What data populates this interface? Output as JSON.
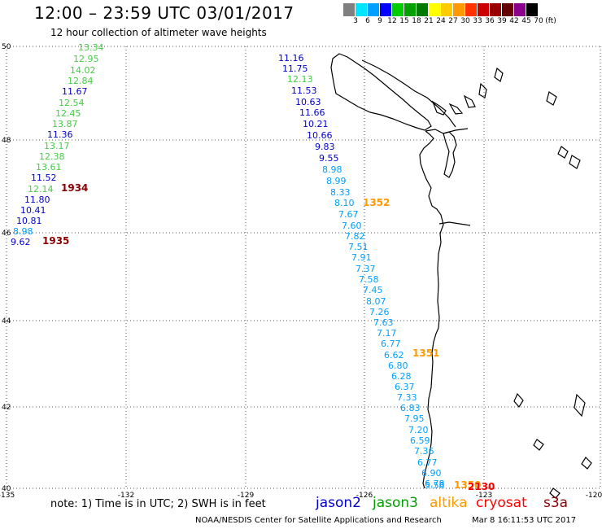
{
  "header": {
    "title": "12:00 – 23:59 UTC 03/01/2017",
    "subtitle": "12 hour collection of altimeter wave heights"
  },
  "color_scale": {
    "labels": [
      "3",
      "6",
      "9",
      "12",
      "15",
      "18",
      "21",
      "24",
      "27",
      "30",
      "33",
      "36",
      "39",
      "42",
      "45",
      "70",
      "(ft)"
    ],
    "colors": [
      "#7f7f7f",
      "#00e5ff",
      "#00a0ff",
      "#0000ff",
      "#00cc00",
      "#00a000",
      "#007a00",
      "#ffff00",
      "#ffcc00",
      "#ff9900",
      "#ff3300",
      "#cc0000",
      "#990000",
      "#660000",
      "#8b008b",
      "#000000"
    ]
  },
  "axes": {
    "lon_labels": [
      "-135",
      "-132",
      "-129",
      "-126",
      "-123",
      "-120"
    ],
    "lat_labels": [
      "50",
      "48",
      "46",
      "44",
      "42",
      "40"
    ]
  },
  "tracks": {
    "jason3_west": {
      "color": "#44cc44",
      "points": [
        {
          "v": "13.34",
          "c": "#44cc44"
        },
        {
          "v": "12.95",
          "c": "#44cc44"
        },
        {
          "v": "14.02",
          "c": "#44cc44"
        },
        {
          "v": "12.84",
          "c": "#44cc44"
        },
        {
          "v": "11.67",
          "c": "#0000cc"
        },
        {
          "v": "12.54",
          "c": "#44cc44"
        },
        {
          "v": "12.45",
          "c": "#44cc44"
        },
        {
          "v": "13.87",
          "c": "#44cc44"
        },
        {
          "v": "11.36",
          "c": "#0000cc"
        },
        {
          "v": "13.17",
          "c": "#44cc44"
        },
        {
          "v": "12.38",
          "c": "#44cc44"
        },
        {
          "v": "13.61",
          "c": "#44cc44"
        },
        {
          "v": "11.52",
          "c": "#0000cc"
        },
        {
          "v": "12.14",
          "c": "#44cc44"
        },
        {
          "v": "11.80",
          "c": "#0000cc"
        },
        {
          "v": "10.41",
          "c": "#0000cc"
        },
        {
          "v": "10.81",
          "c": "#0000cc"
        },
        {
          "v": "8.98",
          "c": "#00a0ff"
        },
        {
          "v": "9.62",
          "c": "#0000cc"
        }
      ]
    },
    "jason2_coast": {
      "points": [
        {
          "v": "11.16",
          "c": "#0000cc"
        },
        {
          "v": "11.75",
          "c": "#0000cc"
        },
        {
          "v": "12.13",
          "c": "#44cc44"
        },
        {
          "v": "11.53",
          "c": "#0000cc"
        },
        {
          "v": "10.63",
          "c": "#0000cc"
        },
        {
          "v": "11.66",
          "c": "#0000cc"
        },
        {
          "v": "10.21",
          "c": "#0000cc"
        },
        {
          "v": "10.66",
          "c": "#0000cc"
        },
        {
          "v": "9.83",
          "c": "#0000cc"
        },
        {
          "v": "9.55",
          "c": "#0000cc"
        },
        {
          "v": "8.98",
          "c": "#00a0ff"
        },
        {
          "v": "8.99",
          "c": "#00a0ff"
        },
        {
          "v": "8.33",
          "c": "#00a0ff"
        },
        {
          "v": "8.10",
          "c": "#00a0ff"
        },
        {
          "v": "7.67",
          "c": "#00a0ff"
        },
        {
          "v": "7.60",
          "c": "#00a0ff"
        },
        {
          "v": "7.82",
          "c": "#00a0ff"
        },
        {
          "v": "7.51",
          "c": "#00a0ff"
        },
        {
          "v": "7.91",
          "c": "#00a0ff"
        },
        {
          "v": "7.37",
          "c": "#00a0ff"
        },
        {
          "v": "7.58",
          "c": "#00a0ff"
        },
        {
          "v": "7.45",
          "c": "#00a0ff"
        },
        {
          "v": "8.07",
          "c": "#00a0ff"
        },
        {
          "v": "7.26",
          "c": "#00a0ff"
        },
        {
          "v": "7.63",
          "c": "#00a0ff"
        },
        {
          "v": "7.17",
          "c": "#00a0ff"
        },
        {
          "v": "6.77",
          "c": "#00a0ff"
        },
        {
          "v": "6.62",
          "c": "#00a0ff"
        },
        {
          "v": "6.80",
          "c": "#00a0ff"
        },
        {
          "v": "6.28",
          "c": "#00a0ff"
        },
        {
          "v": "6.37",
          "c": "#00a0ff"
        },
        {
          "v": "7.33",
          "c": "#00a0ff"
        },
        {
          "v": "6.83",
          "c": "#00a0ff"
        },
        {
          "v": "7.95",
          "c": "#00a0ff"
        },
        {
          "v": "7.20",
          "c": "#00a0ff"
        },
        {
          "v": "6.59",
          "c": "#00a0ff"
        },
        {
          "v": "7.36",
          "c": "#00a0ff"
        },
        {
          "v": "6.77",
          "c": "#00a0ff"
        },
        {
          "v": "6.90",
          "c": "#00a0ff"
        },
        {
          "v": "6.78",
          "c": "#00a0ff"
        },
        {
          "v": "5.58",
          "c": "#00a0ff"
        }
      ]
    },
    "time_labels": [
      {
        "t": "1934",
        "c": "#8b0000"
      },
      {
        "t": "1935",
        "c": "#8b0000"
      },
      {
        "t": "1352",
        "c": "#ff9900"
      },
      {
        "t": "1351",
        "c": "#ff9900"
      },
      {
        "t": "1350",
        "c": "#ff9900"
      },
      {
        "t": "2130",
        "c": "#ff0000"
      }
    ]
  },
  "footer": {
    "note": "note:  1) Time is in UTC;  2) SWH is in feet",
    "legend": [
      {
        "label": "jason2",
        "color": "#0000cc"
      },
      {
        "label": "jason3",
        "color": "#00a000"
      },
      {
        "label": "altika",
        "color": "#ff9900"
      },
      {
        "label": "cryosat",
        "color": "#ff0000"
      },
      {
        "label": "s3a",
        "color": "#8b0000"
      }
    ],
    "credit": "NOAA/NESDIS Center for Satellite Applications and Research",
    "timestamp": "Mar  8 16:11:53 UTC 2017"
  }
}
